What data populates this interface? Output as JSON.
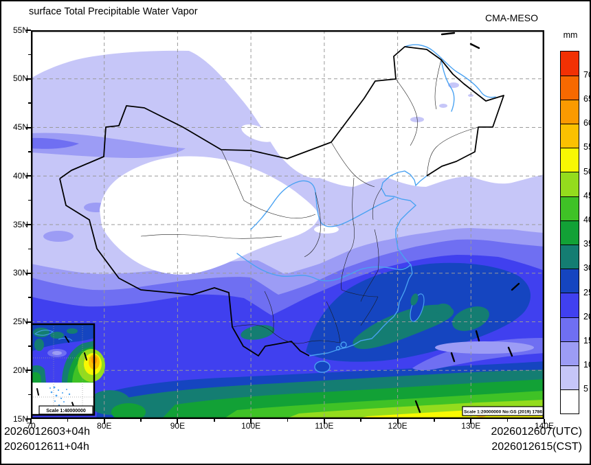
{
  "header": {
    "title": "surface Total Precipitable Water Vapor",
    "model": "CMA-MESO"
  },
  "legend": {
    "unit": "mm",
    "boundaries": [
      5,
      10,
      15,
      20,
      25,
      30,
      35,
      40,
      45,
      50,
      55,
      60,
      65,
      70
    ],
    "colors_bottom_to_top": [
      "#ffffff",
      "#c6c6f8",
      "#9c9cf5",
      "#6f6ff2",
      "#4040ef",
      "#1545c0",
      "#147d72",
      "#12a136",
      "#3fc226",
      "#94dc1d",
      "#f8f803",
      "#fbc101",
      "#fb9a01",
      "#f76901",
      "#f23104"
    ]
  },
  "axes": {
    "lat_ticks": [
      {
        "label": "55N",
        "lat": 55
      },
      {
        "label": "50N",
        "lat": 50
      },
      {
        "label": "45N",
        "lat": 45
      },
      {
        "label": "40N",
        "lat": 40
      },
      {
        "label": "35N",
        "lat": 35
      },
      {
        "label": "30N",
        "lat": 30
      },
      {
        "label": "25N",
        "lat": 25
      },
      {
        "label": "20N",
        "lat": 20
      },
      {
        "label": "15N",
        "lat": 15
      }
    ],
    "lon_ticks": [
      {
        "label": "70",
        "lon": 70
      },
      {
        "label": "80E",
        "lon": 80
      },
      {
        "label": "90E",
        "lon": 90
      },
      {
        "label": "100E",
        "lon": 100
      },
      {
        "label": "110E",
        "lon": 110
      },
      {
        "label": "120E",
        "lon": 120
      },
      {
        "label": "130E",
        "lon": 130
      },
      {
        "label": "140E",
        "lon": 140
      }
    ]
  },
  "map": {
    "scale_label": "Scale 1:20000000 No:GS (2019) 1786",
    "inset_scale_label": "Scale 1:40000000",
    "grid_color": "#999999",
    "river_color": "#49a2f2",
    "border_color": "#000000"
  },
  "footer": {
    "left_line1": "2026012603+04h",
    "left_line2": "2026012611+04h",
    "right_line1": "2026012607(UTC)",
    "right_line2": "2026012615(CST)"
  }
}
